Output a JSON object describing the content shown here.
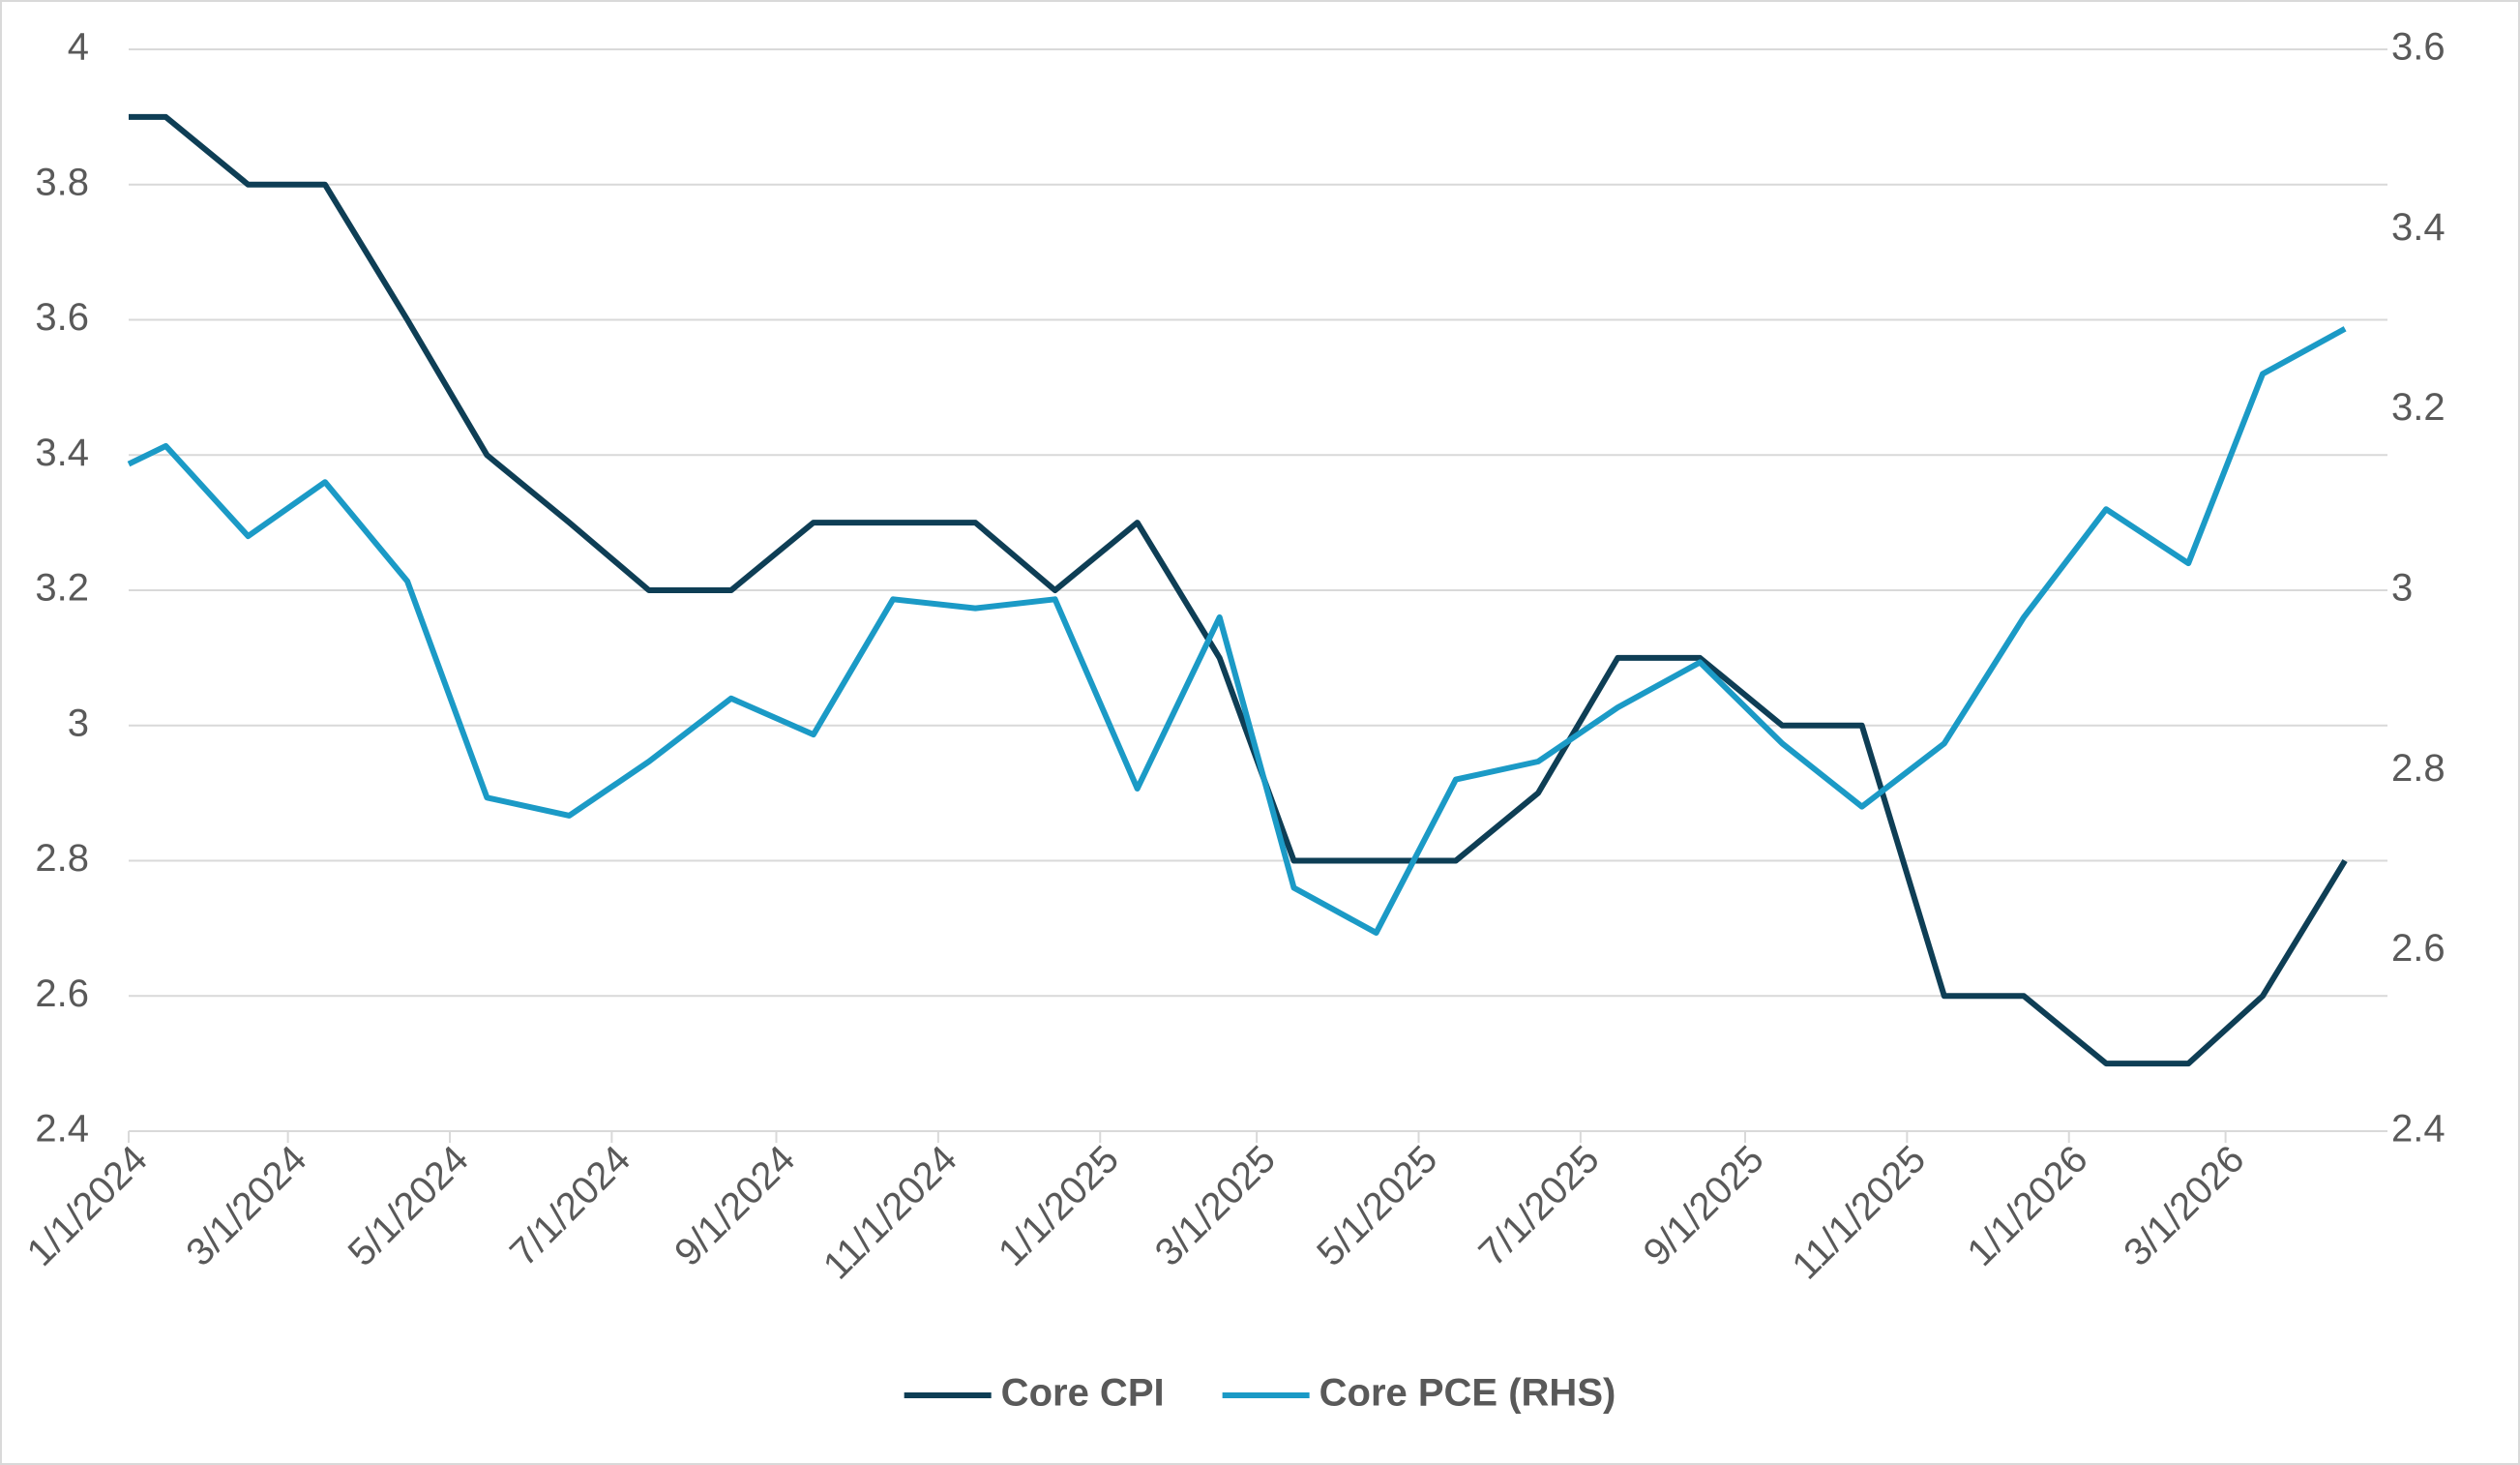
{
  "chart_data": {
    "type": "line",
    "x": [
      "1/1/2024",
      "1/15/2024",
      "2/15/2024",
      "3/15/2024",
      "4/15/2024",
      "5/15/2024",
      "6/15/2024",
      "7/15/2024",
      "8/15/2024",
      "9/15/2024",
      "10/15/2024",
      "11/15/2024",
      "12/15/2024",
      "1/15/2025",
      "2/15/2025",
      "3/15/2025",
      "4/15/2025",
      "5/15/2025",
      "6/15/2025",
      "7/15/2025",
      "8/15/2025",
      "9/15/2025",
      "10/15/2025",
      "11/15/2025",
      "12/15/2025",
      "1/15/2026",
      "2/15/2026",
      "3/15/2026",
      "4/15/2026"
    ],
    "series": [
      {
        "name": "Core CPI",
        "color": "#0e3e55",
        "values": [
          3.9,
          3.9,
          3.8,
          3.8,
          3.6,
          3.4,
          3.3,
          3.2,
          3.2,
          3.3,
          3.3,
          3.3,
          3.2,
          3.3,
          3.1,
          2.8,
          2.8,
          2.8,
          2.9,
          3.1,
          3.1,
          3.0,
          3.0,
          2.6,
          2.6,
          2.5,
          2.5,
          2.6,
          2.8
        ]
      },
      {
        "name": "Core PCE (RHS)",
        "color": "#1b9ac6",
        "axis": "y2",
        "values": [
          3.14,
          3.16,
          3.06,
          3.12,
          3.01,
          2.77,
          2.75,
          2.81,
          2.88,
          2.84,
          2.99,
          2.98,
          2.99,
          2.78,
          2.97,
          2.67,
          2.62,
          2.79,
          2.81,
          2.87,
          2.92,
          2.83,
          2.76,
          2.83,
          2.97,
          3.09,
          3.03,
          3.24,
          3.29
        ]
      }
    ],
    "xlim": [
      "1/1/2024",
      "5/1/2026"
    ],
    "xticks": [
      "1/1/2024",
      "3/1/2024",
      "5/1/2024",
      "7/1/2024",
      "9/1/2024",
      "11/1/2024",
      "1/1/2025",
      "3/1/2025",
      "5/1/2025",
      "7/1/2025",
      "9/1/2025",
      "11/1/2025",
      "1/1/2026",
      "3/1/2026"
    ],
    "ylim": [
      2.4,
      4
    ],
    "yticks": [
      2.4,
      2.6,
      2.8,
      3,
      3.2,
      3.4,
      3.6,
      3.8,
      4
    ],
    "y2lim": [
      2.4,
      3.6
    ],
    "y2ticks": [
      2.4,
      2.6,
      2.8,
      3,
      3.2,
      3.4,
      3.6
    ],
    "grid": true,
    "legend": "bottom"
  }
}
